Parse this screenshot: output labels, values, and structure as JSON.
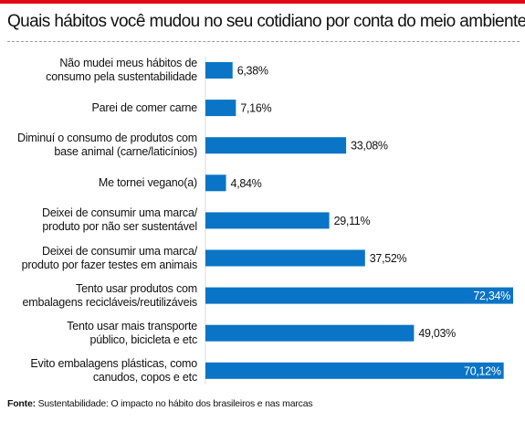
{
  "chart_data": {
    "type": "bar",
    "orientation": "horizontal",
    "title": "Quais hábitos você mudou no seu cotidiano por conta do meio ambiente?",
    "categories": [
      [
        "Não mudei meus hábitos de",
        "consumo pela sustentabilidade"
      ],
      [
        "Parei de comer carne"
      ],
      [
        "Diminuí o consumo de produtos com",
        "base animal (carne/laticínios)"
      ],
      [
        "Me tornei vegano(a)"
      ],
      [
        "Deixei de consumir uma marca/",
        "produto por não ser sustentável"
      ],
      [
        "Deixei de consumir uma marca/",
        "produto por fazer testes em animais"
      ],
      [
        "Tento usar produtos com",
        "embalagens recicláveis/reutilizáveis"
      ],
      [
        "Tento usar mais transporte",
        "público, bicicleta e etc"
      ],
      [
        "Evito embalagens plásticas, como",
        "canudos, copos e etc"
      ]
    ],
    "values": [
      6.38,
      7.16,
      33.08,
      4.84,
      29.11,
      37.52,
      72.34,
      49.03,
      70.12
    ],
    "value_labels": [
      "6,38%",
      "7,16%",
      "33,08%",
      "4,84%",
      "29,11%",
      "37,52%",
      "72,34%",
      "49,03%",
      "70,12%"
    ],
    "label_inside": [
      false,
      false,
      false,
      false,
      false,
      false,
      true,
      false,
      true
    ],
    "xlim": [
      0,
      72.34
    ],
    "bar_color": "#0a74c6",
    "accent_color": "#e30613"
  },
  "footnote": {
    "label": "Fonte:",
    "text": " Sustentabilidade: O impacto no hábito dos brasileiros e nas marcas"
  }
}
